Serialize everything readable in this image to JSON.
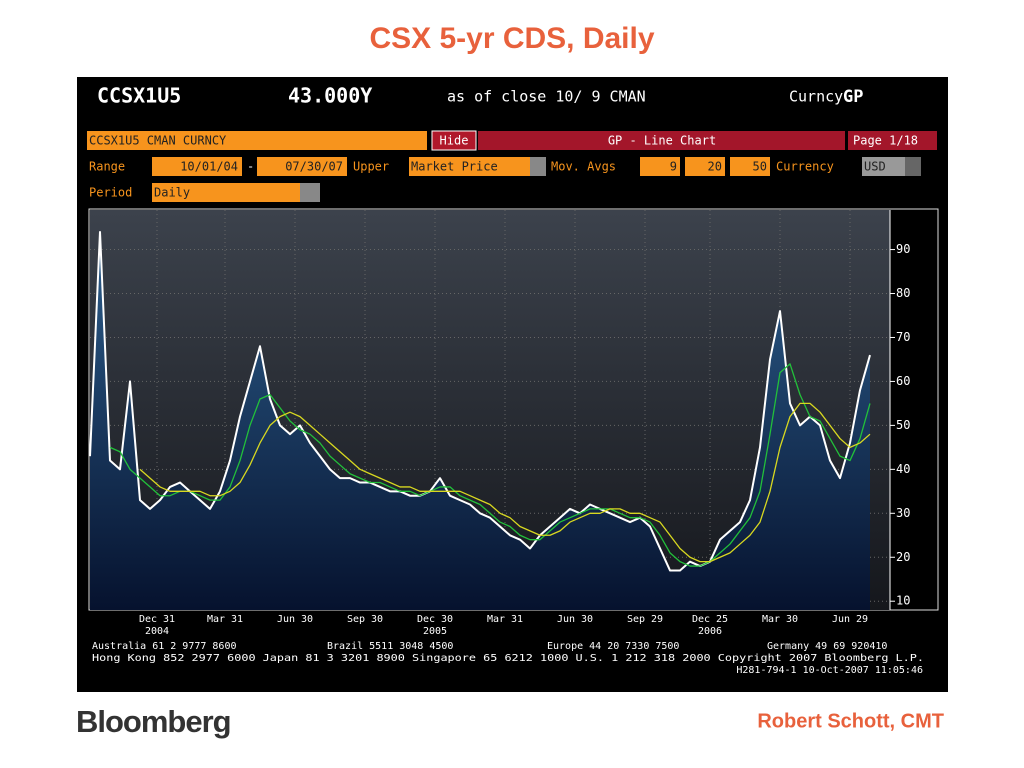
{
  "header": {
    "ticker": "CCSX1U5",
    "price": "43.000Y",
    "close": "as of close 10/ 9 CMAN",
    "curncy": "Curncy",
    "func": "GP"
  },
  "controls": {
    "security": "CCSX1U5 CMAN CURNCY",
    "hide": "Hide",
    "chart_name": "GP - Line Chart",
    "page": "Page 1/18",
    "range_label": "Range",
    "start": "10/01/04",
    "dash": "-",
    "end": "07/30/07",
    "upper_label": "Upper",
    "upper": "Market Price",
    "mavg_label": "Mov. Avgs",
    "mavg": [
      "9",
      "20",
      "50"
    ],
    "currency_label": "Currency",
    "currency": "USD",
    "period_label": "Period",
    "period": "Daily"
  },
  "footer": {
    "line1": [
      "Australia 61 2 9777 8600",
      "Brazil 5511 3048 4500",
      "Europe 44 20 7330 7500",
      "Germany 49 69 920410"
    ],
    "line2": "Hong Kong 852 2977 6000 Japan 81 3 3201 8900 Singapore 65 6212 1000 U.S. 1 212 318 2000 Copyright 2007 Bloomberg L.P.",
    "line3": "H281-794-1 10-Oct-2007 11:05:46"
  },
  "logo": "Bloomberg",
  "author": "Robert Schott, CMT",
  "chart_data": {
    "type": "line",
    "title": "CSX 5-yr CDS, Daily",
    "xlim": [
      0,
      80
    ],
    "ylim": [
      8,
      99
    ],
    "yticks": [
      10,
      20,
      30,
      40,
      50,
      60,
      70,
      80,
      90
    ],
    "xticks": [
      {
        "value": 6.7,
        "label": "Dec 31"
      },
      {
        "value": 13.5,
        "label": "Mar 31"
      },
      {
        "value": 20.5,
        "label": "Jun 30"
      },
      {
        "value": 27.5,
        "label": "Sep 30"
      },
      {
        "value": 34.5,
        "label": "Dec 30"
      },
      {
        "value": 41.5,
        "label": "Mar 31"
      },
      {
        "value": 48.5,
        "label": "Jun 30"
      },
      {
        "value": 55.5,
        "label": "Sep 29"
      },
      {
        "value": 62,
        "label": "Dec 25"
      },
      {
        "value": 69,
        "label": "Mar 30"
      },
      {
        "value": 76,
        "label": "Jun 29"
      }
    ],
    "year_labels": [
      {
        "value": 6.7,
        "label": "2004"
      },
      {
        "value": 34.5,
        "label": "2005"
      },
      {
        "value": 62,
        "label": "2006"
      }
    ],
    "grid": true,
    "series": [
      {
        "color": "#ffffff",
        "fill": true,
        "values": [
          43,
          94,
          42,
          40,
          60,
          33,
          31,
          33,
          36,
          37,
          35,
          33,
          31,
          35,
          42,
          52,
          60,
          68,
          56,
          50,
          48,
          50,
          46,
          43,
          40,
          38,
          38,
          37,
          37,
          36,
          35,
          35,
          34,
          34,
          35,
          38,
          34,
          33,
          32,
          30,
          29,
          27,
          25,
          24,
          22,
          25,
          27,
          29,
          31,
          30,
          32,
          31,
          30,
          29,
          28,
          29,
          27,
          22,
          17,
          17,
          19,
          18,
          19,
          24,
          26,
          28,
          33,
          45,
          65,
          76,
          55,
          50,
          52,
          50,
          42,
          38,
          46,
          58,
          66
        ]
      },
      {
        "color": "#22c03a",
        "values": [
          null,
          null,
          45,
          44,
          40,
          38,
          36,
          34,
          34,
          35,
          35,
          34,
          33,
          33,
          36,
          42,
          50,
          56,
          57,
          54,
          51,
          49,
          48,
          46,
          43,
          41,
          39,
          38,
          37,
          37,
          36,
          35,
          35,
          34,
          35,
          36,
          36,
          34,
          33,
          32,
          30,
          28,
          27,
          25,
          24,
          24,
          26,
          28,
          29,
          30,
          31,
          31,
          31,
          30,
          29,
          29,
          28,
          25,
          21,
          19,
          18,
          18,
          19,
          21,
          23,
          26,
          29,
          35,
          48,
          62,
          64,
          57,
          52,
          51,
          47,
          43,
          42,
          47,
          55
        ]
      },
      {
        "color": "#d8d820",
        "values": [
          null,
          null,
          null,
          null,
          null,
          40,
          38,
          36,
          35,
          35,
          35,
          35,
          34,
          34,
          35,
          37,
          41,
          46,
          50,
          52,
          53,
          52,
          50,
          48,
          46,
          44,
          42,
          40,
          39,
          38,
          37,
          36,
          36,
          35,
          35,
          35,
          35,
          35,
          34,
          33,
          32,
          30,
          29,
          27,
          26,
          25,
          25,
          26,
          28,
          29,
          30,
          30,
          31,
          31,
          30,
          30,
          29,
          28,
          25,
          22,
          20,
          19,
          19,
          20,
          21,
          23,
          25,
          28,
          35,
          45,
          52,
          55,
          55,
          53,
          50,
          47,
          45,
          46,
          48
        ]
      }
    ]
  }
}
